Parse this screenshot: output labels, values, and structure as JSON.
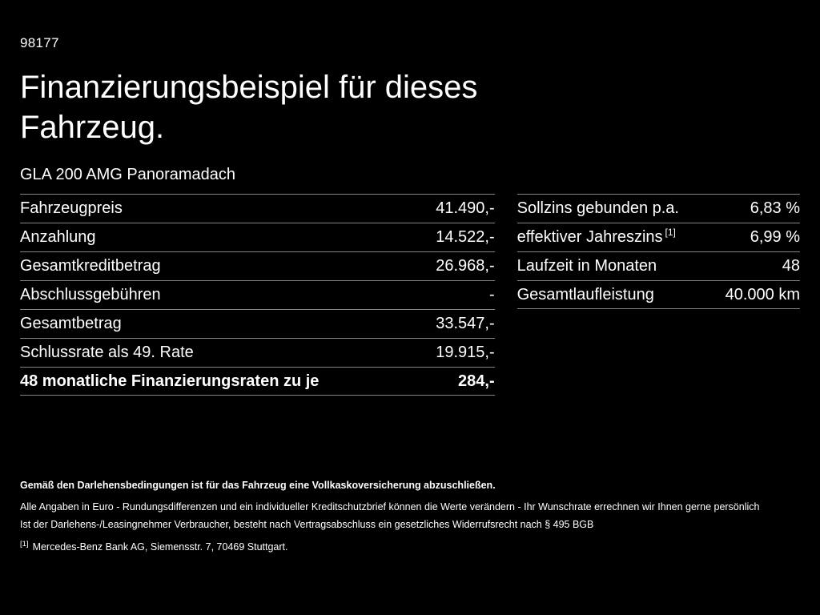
{
  "page": {
    "ref_number": "98177",
    "title_line1": "Finanzierungsbeispiel für dieses",
    "title_line2": "Fahrzeug.",
    "subtitle": "GLA 200 AMG Panoramadach"
  },
  "left_table": {
    "rows": [
      {
        "label": "Fahrzeugpreis",
        "value": "41.490,-"
      },
      {
        "label": "Anzahlung",
        "value": "14.522,-"
      },
      {
        "label": "Gesamtkreditbetrag",
        "value": "26.968,-"
      },
      {
        "label": "Abschlussgebühren",
        "value": "-"
      },
      {
        "label": "Gesamtbetrag",
        "value": "33.547,-"
      },
      {
        "label": "Schlussrate als 49. Rate",
        "value": "19.915,-"
      },
      {
        "label": "48 monatliche Finanzierungsraten zu je",
        "value": "284,-"
      }
    ]
  },
  "right_table": {
    "rows": [
      {
        "label": "Sollzins gebunden p.a.",
        "value": "6,83 %"
      },
      {
        "label": "effektiver Jahreszins",
        "sup": "[1]",
        "value": "6,99 %"
      },
      {
        "label": "Laufzeit in Monaten",
        "value": "48"
      },
      {
        "label": "Gesamtlaufleistung",
        "value": "40.000 km"
      }
    ]
  },
  "footer": {
    "line1": "Gemäß den Darlehensbedingungen ist für das Fahrzeug eine Vollkaskoversicherung abzuschließen.",
    "line2": "Alle Angaben in Euro - Rundungsdifferenzen und ein individueller Kreditschutzbrief können die Werte verändern - Ihr Wunschrate errechnen wir Ihnen gerne persönlich",
    "line3": "Ist der Darlehens-/Leasingnehmer Verbraucher, besteht nach Vertragsabschluss ein gesetzliches Widerrufsrecht nach § 495 BGB",
    "footnote_marker": "[1]",
    "footnote_text": "Mercedes-Benz Bank AG, Siemensstr. 7, 70469 Stuttgart."
  },
  "colors": {
    "background": "#000000",
    "text": "#ffffff",
    "divider": "#858585"
  }
}
